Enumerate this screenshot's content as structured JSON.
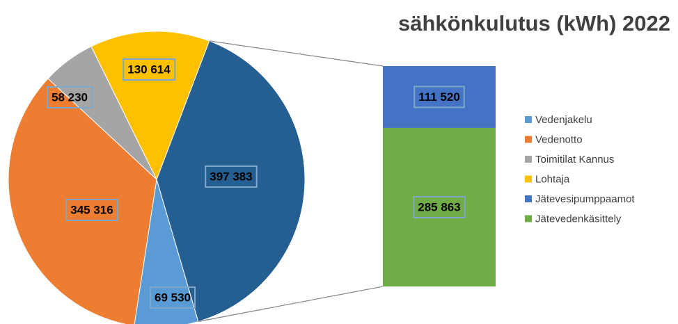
{
  "chart_data": {
    "type": "pie-of-bar",
    "title": "sähkönkulutus (kWh) 2022",
    "slices": {
      "categories": [
        "Vedenjakelu",
        "Vedenotto",
        "Toimitilat Kannus",
        "Lohtaja"
      ],
      "values": [
        69530,
        345316,
        58230,
        130614
      ],
      "value_labels": [
        "69 530",
        "345 316",
        "58 230",
        "130 614"
      ],
      "colors": [
        "#5b9bd5",
        "#ed7d31",
        "#a5a5a5",
        "#ffc000"
      ]
    },
    "other": {
      "value": 397383,
      "value_label": "397 383",
      "color": "#255e91"
    },
    "bar": {
      "categories": [
        "Jätevesipumppaamot",
        "Jätevedenkäsittely"
      ],
      "values": [
        111520,
        285863
      ],
      "value_labels": [
        "111 520",
        "285 863"
      ],
      "colors": [
        "#4472c4",
        "#70ad47"
      ]
    }
  }
}
